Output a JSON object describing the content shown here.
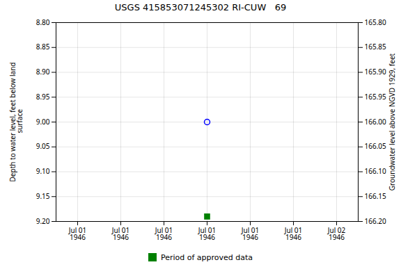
{
  "chart_data": {
    "type": "scatter",
    "title": "USGS 415853071245302 RI-CUW   69",
    "ylabel": "Depth to water level, feet below land\n surface",
    "y2label": "Groundwater level above NGVD 1929, feet",
    "categories": [
      "Jul 01\n1946",
      "Jul 01\n1946",
      "Jul 01\n1946",
      "Jul 01\n1946",
      "Jul 01\n1946",
      "Jul 01\n1946",
      "Jul 02\n1946"
    ],
    "series": [
      {
        "color": "blue",
        "marker": "open_circle",
        "values": [
          null,
          null,
          null,
          9.0,
          null,
          null,
          null
        ]
      },
      {
        "name": "Period of approved data",
        "color": "green",
        "marker": "square",
        "values": [
          null,
          null,
          null,
          9.19,
          null,
          null,
          null
        ]
      }
    ],
    "ylim": [
      9.2,
      8.8
    ],
    "yticks": [
      {
        "value": 8.8,
        "label": "8.80"
      },
      8.85,
      {
        "value": 8.9,
        "label": "8.90"
      },
      8.95,
      {
        "value": 9,
        "label": "9.00"
      },
      9.05,
      {
        "value": 9.1,
        "label": "9.10"
      },
      9.15,
      {
        "value": 9.2,
        "label": "9.20"
      }
    ],
    "y2lim": [
      166.2,
      165.8
    ],
    "y2ticks": [
      {
        "value": 166.2,
        "label": "166.20"
      },
      166.15,
      {
        "value": 166.1,
        "label": "166.10"
      },
      166.05,
      {
        "value": 166,
        "label": "166.00"
      },
      165.95,
      {
        "value": 165.9,
        "label": "165.90"
      },
      165.85,
      {
        "value": 165.8,
        "label": "165.80"
      }
    ],
    "grid": true,
    "legend": "bottom"
  }
}
